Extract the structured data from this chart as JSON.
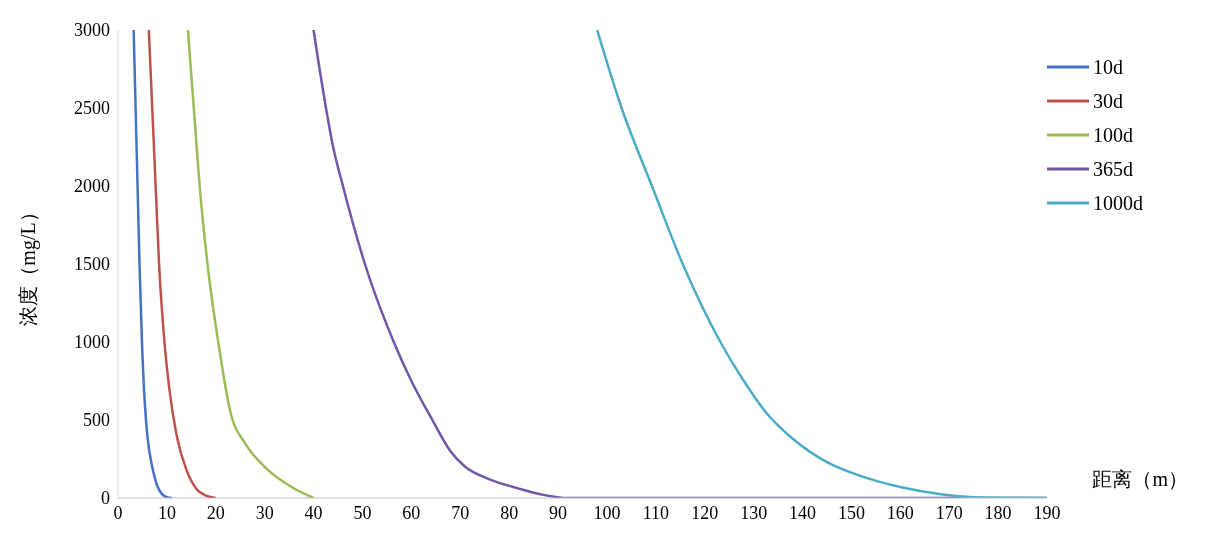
{
  "chart_data": {
    "type": "line",
    "xlabel": "距离（m）",
    "ylabel": "浓度（mg/L）",
    "xlim": [
      0,
      190
    ],
    "xticks": [
      0,
      10,
      20,
      30,
      40,
      50,
      60,
      70,
      80,
      90,
      100,
      110,
      120,
      130,
      140,
      150,
      160,
      170,
      180,
      190
    ],
    "ylim": [
      0,
      3000
    ],
    "yticks": [
      0,
      500,
      1000,
      1500,
      2000,
      2500,
      3000
    ],
    "grid": false,
    "legend": "top right",
    "marker": "none",
    "line_style": "solid",
    "series": [
      {
        "name": "10d",
        "color": "#4472c4",
        "x": [
          3.2,
          3.6,
          4,
          4.4,
          4.9,
          5.5,
          6,
          7,
          8,
          9,
          10,
          11
        ],
        "values": [
          3000,
          2500,
          2000,
          1500,
          1000,
          600,
          400,
          200,
          80,
          25,
          5,
          0
        ]
      },
      {
        "name": "30d",
        "color": "#c0504d",
        "x": [
          6.3,
          7,
          7.7,
          8.4,
          9.5,
          10.5,
          12,
          14,
          16,
          18,
          20
        ],
        "values": [
          3000,
          2500,
          2000,
          1500,
          1000,
          700,
          400,
          180,
          60,
          15,
          0
        ]
      },
      {
        "name": "100d",
        "color": "#9bbb59",
        "x": [
          14.3,
          15.5,
          16.7,
          18.3,
          20.5,
          23,
          26,
          30,
          35,
          40
        ],
        "values": [
          3000,
          2500,
          2000,
          1500,
          1000,
          550,
          350,
          200,
          80,
          0
        ]
      },
      {
        "name": "365d",
        "color": "#7157a4",
        "x": [
          40,
          42,
          44,
          46,
          50.5,
          56.4,
          60,
          64.3,
          68,
          71,
          76,
          82,
          87,
          92,
          190
        ],
        "values": [
          3000,
          2600,
          2250,
          2000,
          1500,
          1000,
          750,
          500,
          300,
          200,
          120,
          60,
          20,
          0,
          0
        ]
      },
      {
        "name": "1000d",
        "color": "#4bacc6",
        "x": [
          98,
          103,
          109.2,
          115.5,
          123.2,
          128,
          132.5,
          138,
          145,
          152,
          160,
          168,
          175,
          190
        ],
        "values": [
          3000,
          2500,
          2000,
          1500,
          1000,
          750,
          550,
          380,
          230,
          140,
          70,
          25,
          5,
          0
        ]
      }
    ]
  }
}
